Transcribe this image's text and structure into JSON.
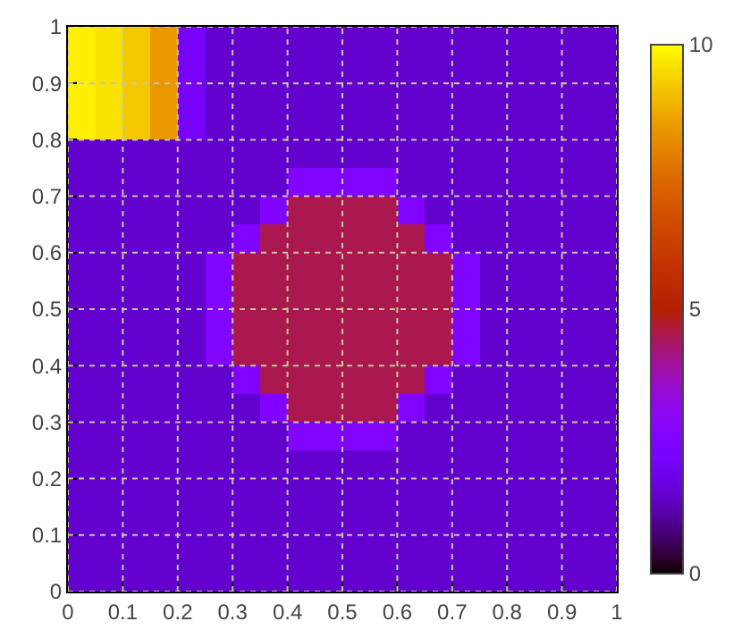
{
  "chart_data": {
    "type": "heatmap",
    "x": [
      0.025,
      0.075,
      0.125,
      0.175,
      0.225,
      0.275,
      0.325,
      0.375,
      0.425,
      0.475,
      0.525,
      0.575,
      0.625,
      0.675,
      0.725,
      0.775,
      0.825,
      0.875,
      0.925,
      0.975
    ],
    "y": [
      0.975,
      0.925,
      0.875,
      0.825,
      0.775,
      0.725,
      0.675,
      0.625,
      0.575,
      0.525,
      0.475,
      0.425,
      0.375,
      0.325,
      0.275,
      0.225,
      0.175,
      0.125,
      0.075,
      0.025
    ],
    "cells": [
      [
        9.8,
        9.6,
        9.2,
        8.4,
        2.2,
        1.5,
        1.5,
        1.5,
        1.5,
        1.5,
        1.5,
        1.5,
        1.5,
        1.5,
        1.5,
        1.5,
        1.5,
        1.5,
        1.5,
        1.5
      ],
      [
        9.8,
        9.6,
        9.2,
        8.4,
        2.2,
        1.5,
        1.5,
        1.5,
        1.5,
        1.5,
        1.5,
        1.5,
        1.5,
        1.5,
        1.5,
        1.5,
        1.5,
        1.5,
        1.5,
        1.5
      ],
      [
        9.8,
        9.6,
        9.2,
        8.4,
        2.2,
        1.5,
        1.5,
        1.5,
        1.5,
        1.5,
        1.5,
        1.5,
        1.5,
        1.5,
        1.5,
        1.5,
        1.5,
        1.5,
        1.5,
        1.5
      ],
      [
        9.8,
        9.6,
        9.2,
        8.4,
        2.2,
        1.5,
        1.5,
        1.5,
        1.5,
        1.5,
        1.5,
        1.5,
        1.5,
        1.5,
        1.5,
        1.5,
        1.5,
        1.5,
        1.5,
        1.5
      ],
      [
        1.5,
        1.5,
        1.5,
        1.5,
        1.5,
        1.5,
        1.5,
        1.5,
        1.5,
        1.5,
        1.5,
        1.5,
        1.5,
        1.5,
        1.5,
        1.5,
        1.5,
        1.5,
        1.5,
        1.5
      ],
      [
        1.5,
        1.5,
        1.5,
        1.5,
        1.5,
        1.5,
        1.5,
        1.5,
        2.5,
        2.5,
        2.5,
        2.5,
        1.5,
        1.5,
        1.5,
        1.5,
        1.5,
        1.5,
        1.5,
        1.5
      ],
      [
        1.5,
        1.5,
        1.5,
        1.5,
        1.5,
        1.5,
        1.5,
        2.5,
        4.5,
        4.5,
        4.5,
        4.5,
        2.5,
        1.5,
        1.5,
        1.5,
        1.5,
        1.5,
        1.5,
        1.5
      ],
      [
        1.5,
        1.5,
        1.5,
        1.5,
        1.5,
        1.5,
        2.5,
        4.5,
        4.5,
        4.5,
        4.5,
        4.5,
        4.5,
        2.5,
        1.5,
        1.5,
        1.5,
        1.5,
        1.5,
        1.5
      ],
      [
        1.5,
        1.5,
        1.5,
        1.5,
        1.5,
        2.5,
        4.5,
        4.5,
        4.5,
        4.5,
        4.5,
        4.5,
        4.5,
        4.5,
        2.5,
        1.5,
        1.5,
        1.5,
        1.5,
        1.5
      ],
      [
        1.5,
        1.5,
        1.5,
        1.5,
        1.5,
        2.5,
        4.5,
        4.5,
        4.5,
        4.5,
        4.5,
        4.5,
        4.5,
        4.5,
        2.5,
        1.5,
        1.5,
        1.5,
        1.5,
        1.5
      ],
      [
        1.5,
        1.5,
        1.5,
        1.5,
        1.5,
        2.5,
        4.5,
        4.5,
        4.5,
        4.5,
        4.5,
        4.5,
        4.5,
        4.5,
        2.5,
        1.5,
        1.5,
        1.5,
        1.5,
        1.5
      ],
      [
        1.5,
        1.5,
        1.5,
        1.5,
        1.5,
        2.5,
        4.5,
        4.5,
        4.5,
        4.5,
        4.5,
        4.5,
        4.5,
        4.5,
        2.5,
        1.5,
        1.5,
        1.5,
        1.5,
        1.5
      ],
      [
        1.5,
        1.5,
        1.5,
        1.5,
        1.5,
        1.5,
        2.5,
        4.5,
        4.5,
        4.5,
        4.5,
        4.5,
        4.5,
        2.5,
        1.5,
        1.5,
        1.5,
        1.5,
        1.5,
        1.5
      ],
      [
        1.5,
        1.5,
        1.5,
        1.5,
        1.5,
        1.5,
        1.5,
        2.5,
        4.5,
        4.5,
        4.5,
        4.5,
        2.5,
        1.5,
        1.5,
        1.5,
        1.5,
        1.5,
        1.5,
        1.5
      ],
      [
        1.5,
        1.5,
        1.5,
        1.5,
        1.5,
        1.5,
        1.5,
        1.5,
        2.5,
        2.5,
        2.5,
        2.5,
        1.5,
        1.5,
        1.5,
        1.5,
        1.5,
        1.5,
        1.5,
        1.5
      ],
      [
        1.5,
        1.5,
        1.5,
        1.5,
        1.5,
        1.5,
        1.5,
        1.5,
        1.5,
        1.5,
        1.5,
        1.5,
        1.5,
        1.5,
        1.5,
        1.5,
        1.5,
        1.5,
        1.5,
        1.5
      ],
      [
        1.5,
        1.5,
        1.5,
        1.5,
        1.5,
        1.5,
        1.5,
        1.5,
        1.5,
        1.5,
        1.5,
        1.5,
        1.5,
        1.5,
        1.5,
        1.5,
        1.5,
        1.5,
        1.5,
        1.5
      ],
      [
        1.5,
        1.5,
        1.5,
        1.5,
        1.5,
        1.5,
        1.5,
        1.5,
        1.5,
        1.5,
        1.5,
        1.5,
        1.5,
        1.5,
        1.5,
        1.5,
        1.5,
        1.5,
        1.5,
        1.5
      ],
      [
        1.5,
        1.5,
        1.5,
        1.5,
        1.5,
        1.5,
        1.5,
        1.5,
        1.5,
        1.5,
        1.5,
        1.5,
        1.5,
        1.5,
        1.5,
        1.5,
        1.5,
        1.5,
        1.5,
        1.5
      ],
      [
        1.5,
        1.5,
        1.5,
        1.5,
        1.5,
        1.5,
        1.5,
        1.5,
        1.5,
        1.5,
        1.5,
        1.5,
        1.5,
        1.5,
        1.5,
        1.5,
        1.5,
        1.5,
        1.5,
        1.5
      ]
    ],
    "xlim": [
      0,
      1
    ],
    "ylim": [
      0,
      1
    ],
    "xticks": [
      0,
      0.1,
      0.2,
      0.3,
      0.4,
      0.5,
      0.6,
      0.7,
      0.8,
      0.9,
      1
    ],
    "yticks": [
      0,
      0.1,
      0.2,
      0.3,
      0.4,
      0.5,
      0.6,
      0.7,
      0.8,
      0.9,
      1
    ],
    "clim": [
      0,
      10
    ],
    "cticks": [
      0,
      5,
      10
    ],
    "grid": true
  }
}
